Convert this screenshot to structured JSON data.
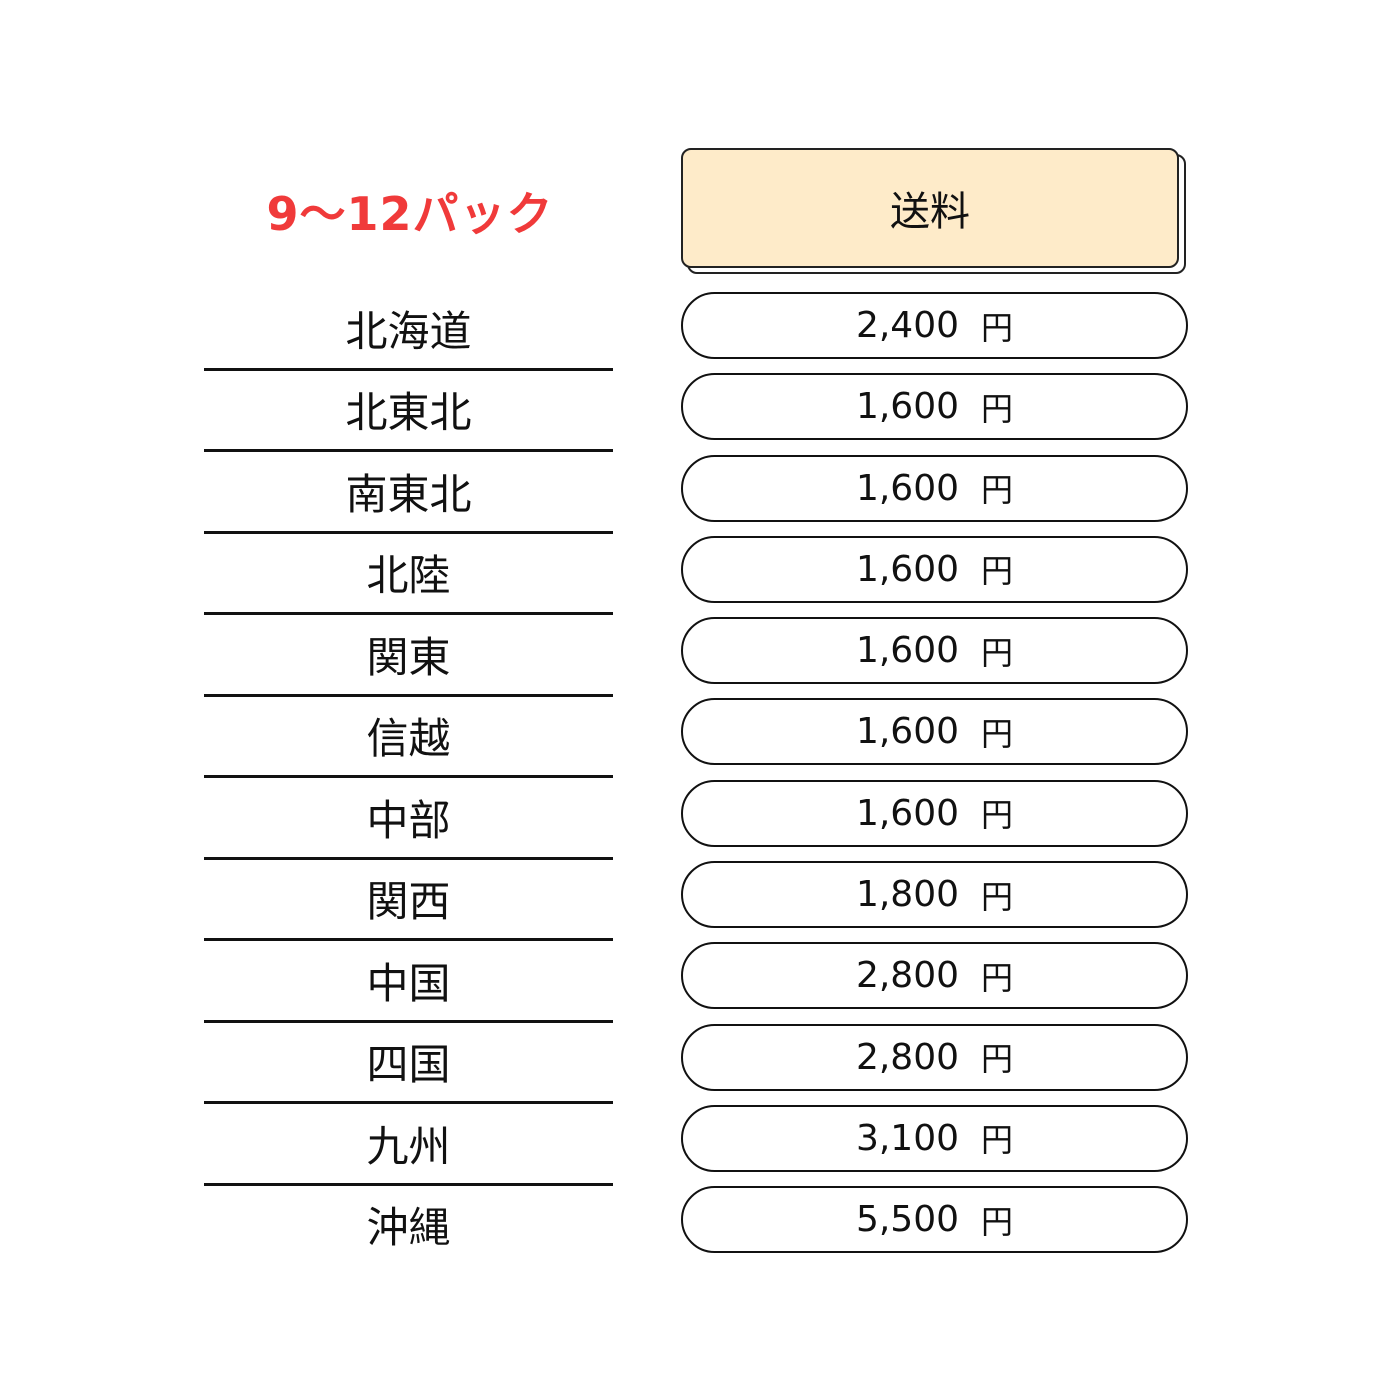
{
  "title": "9〜12パック",
  "header": "送料",
  "currency": "円",
  "accent_color": "#f03a3a",
  "header_bg": "#feebc9",
  "rows": [
    {
      "region": "北海道",
      "price": "2,400"
    },
    {
      "region": "北東北",
      "price": "1,600"
    },
    {
      "region": "南東北",
      "price": "1,600"
    },
    {
      "region": "北陸",
      "price": "1,600"
    },
    {
      "region": "関東",
      "price": "1,600"
    },
    {
      "region": "信越",
      "price": "1,600"
    },
    {
      "region": "中部",
      "price": "1,600"
    },
    {
      "region": "関西",
      "price": "1,800"
    },
    {
      "region": "中国",
      "price": "2,800"
    },
    {
      "region": "四国",
      "price": "2,800"
    },
    {
      "region": "九州",
      "price": "3,100"
    },
    {
      "region": "沖縄",
      "price": "5,500"
    }
  ]
}
